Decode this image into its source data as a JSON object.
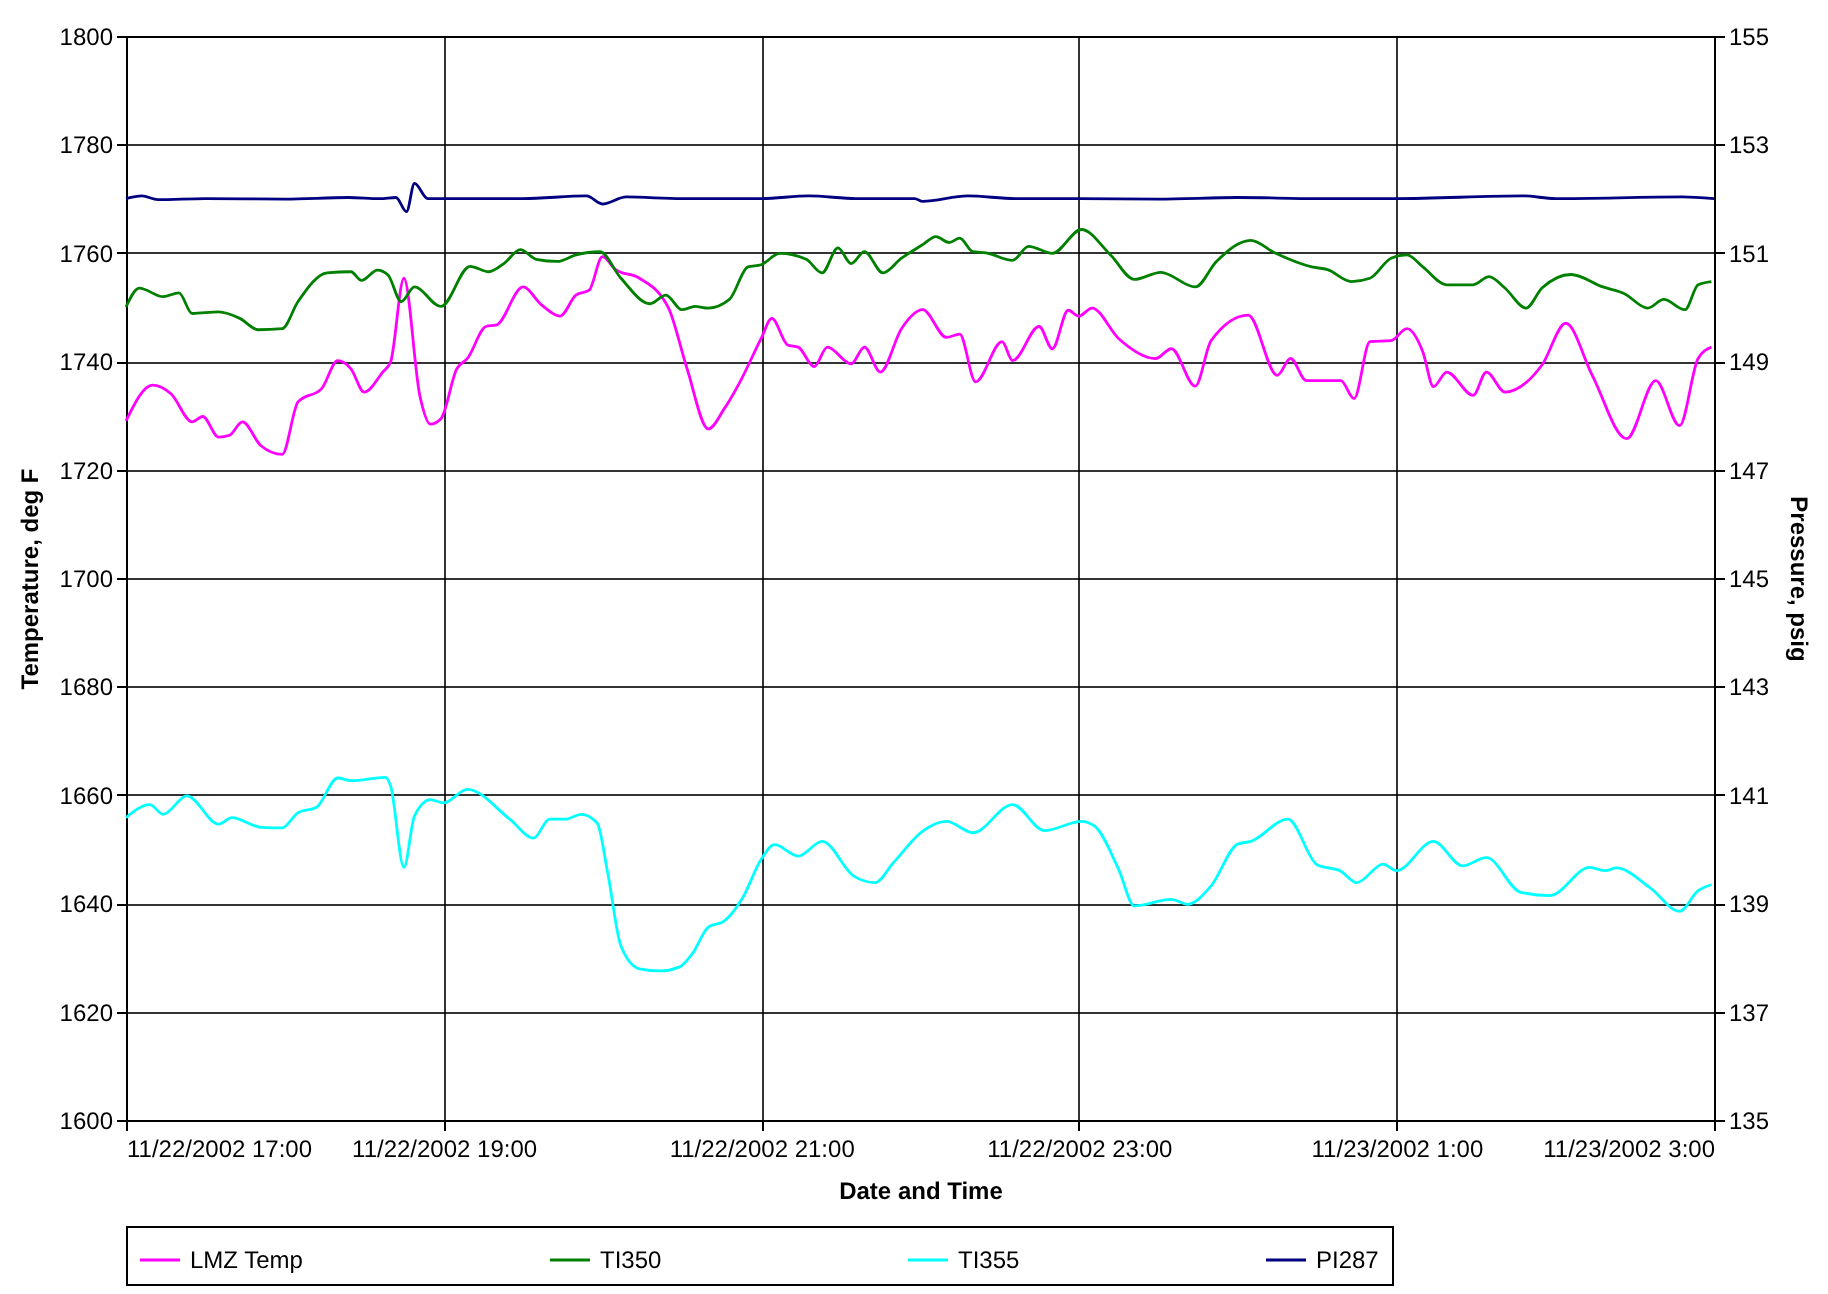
{
  "chart_data": {
    "type": "line",
    "xlabel": "Date and Time",
    "ylabel": "Temperature, deg F",
    "y2label": "Pressure, psig",
    "xlim": [
      "2002-11-22T17:00",
      "2002-11-23T03:00"
    ],
    "xticks": [
      {
        "value": "2002-11-22T17:00",
        "label": "11/22/2002 17:00"
      },
      {
        "value": "2002-11-22T19:00",
        "label": "11/22/2002 19:00"
      },
      {
        "value": "2002-11-22T21:00",
        "label": "11/22/2002 21:00"
      },
      {
        "value": "2002-11-22T23:00",
        "label": "11/22/2002 23:00"
      },
      {
        "value": "2002-11-23T01:00",
        "label": "11/23/2002 1:00"
      },
      {
        "value": "2002-11-23T03:00",
        "label": "11/23/2002 3:00"
      }
    ],
    "ylim": [
      1600,
      1800
    ],
    "yticks": [
      1600,
      1620,
      1640,
      1660,
      1680,
      1700,
      1720,
      1740,
      1760,
      1780,
      1800
    ],
    "y2lim": [
      135,
      155
    ],
    "y2ticks": [
      135,
      137,
      139,
      141,
      143,
      145,
      147,
      149,
      151,
      153,
      155
    ],
    "grid": true,
    "legend": "bottom",
    "series": [
      {
        "name": "LMZ Temp",
        "color": "#ff00ff",
        "x": [
          "2002-11-22T17:00",
          "2002-11-22T17:10",
          "2002-11-22T17:17",
          "2002-11-22T17:25",
          "2002-11-22T17:29",
          "2002-11-22T17:35",
          "2002-11-22T17:39",
          "2002-11-22T17:44",
          "2002-11-22T17:51",
          "2002-11-22T17:59",
          "2002-11-22T18:05",
          "2002-11-22T18:14",
          "2002-11-22T18:20",
          "2002-11-22T18:25",
          "2002-11-22T18:30",
          "2002-11-22T18:37",
          "2002-11-22T18:40",
          "2002-11-22T18:45",
          "2002-11-22T18:51",
          "2002-11-22T18:55",
          "2002-11-22T18:59",
          "2002-11-22T19:05",
          "2002-11-22T19:09",
          "2002-11-22T19:16",
          "2002-11-22T19:20",
          "2002-11-22T19:30",
          "2002-11-22T19:37",
          "2002-11-22T19:44",
          "2002-11-22T19:50",
          "2002-11-22T19:55",
          "2002-11-22T20:00",
          "2002-11-22T20:05",
          "2002-11-22T20:14",
          "2002-11-22T20:25",
          "2002-11-22T20:32",
          "2002-11-22T20:40",
          "2002-11-22T20:46",
          "2002-11-22T20:52",
          "2002-11-22T21:00",
          "2002-11-22T21:04",
          "2002-11-22T21:10",
          "2002-11-22T21:14",
          "2002-11-22T21:20",
          "2002-11-22T21:25",
          "2002-11-22T21:34",
          "2002-11-22T21:39",
          "2002-11-22T21:45",
          "2002-11-22T21:53",
          "2002-11-22T22:01",
          "2002-11-22T22:10",
          "2002-11-22T22:15",
          "2002-11-22T22:21",
          "2002-11-22T22:31",
          "2002-11-22T22:35",
          "2002-11-22T22:45",
          "2002-11-22T22:50",
          "2002-11-22T22:56",
          "2002-11-22T23:00",
          "2002-11-22T23:05",
          "2002-11-22T23:15",
          "2002-11-22T23:29",
          "2002-11-22T23:35",
          "2002-11-22T23:44",
          "2002-11-22T23:50",
          "2002-11-23T00:04",
          "2002-11-23T00:15",
          "2002-11-23T00:20",
          "2002-11-23T00:26",
          "2002-11-23T00:39",
          "2002-11-23T00:44",
          "2002-11-23T00:50",
          "2002-11-23T00:58",
          "2002-11-23T01:04",
          "2002-11-23T01:10",
          "2002-11-23T01:14",
          "2002-11-23T01:19",
          "2002-11-23T01:29",
          "2002-11-23T01:34",
          "2002-11-23T01:41",
          "2002-11-23T01:55",
          "2002-11-23T02:04",
          "2002-11-23T02:14",
          "2002-11-23T02:27",
          "2002-11-23T02:38",
          "2002-11-23T02:47",
          "2002-11-23T02:54",
          "2002-11-23T02:59"
        ],
        "values": [
          1729,
          1735.6,
          1734,
          1728.8,
          1729.8,
          1726,
          1726.3,
          1728.8,
          1724.4,
          1722.8,
          1732.5,
          1735,
          1740.1,
          1738.6,
          1734.3,
          1738,
          1739.9,
          1755.3,
          1733.7,
          1728.4,
          1729.4,
          1738.6,
          1740.5,
          1746.4,
          1746.7,
          1753.7,
          1750.4,
          1748.3,
          1752.2,
          1753.1,
          1759.3,
          1756.9,
          1755.3,
          1749.8,
          1738.6,
          1727.5,
          1731.2,
          1736.2,
          1744.2,
          1747.9,
          1743,
          1742.6,
          1739,
          1742.6,
          1739.5,
          1742.6,
          1738,
          1746,
          1749.5,
          1744.4,
          1745,
          1736.2,
          1743.6,
          1740.1,
          1746.4,
          1742.3,
          1749.4,
          1748.3,
          1749.8,
          1744.2,
          1740.5,
          1742.3,
          1735.4,
          1743.8,
          1748.5,
          1737.4,
          1740.5,
          1736.4,
          1736.4,
          1733.1,
          1743.6,
          1743.8,
          1746,
          1741.7,
          1735.3,
          1738,
          1733.7,
          1738,
          1734.3,
          1739.3,
          1747,
          1737.4,
          1725.7,
          1736.4,
          1728.1,
          1740.5,
          1742.6
        ]
      },
      {
        "name": "TI350",
        "color": "#008000",
        "x": [
          "2002-11-22T17:00",
          "2002-11-22T17:05",
          "2002-11-22T17:14",
          "2002-11-22T17:20",
          "2002-11-22T17:25",
          "2002-11-22T17:35",
          "2002-11-22T17:43",
          "2002-11-22T17:50",
          "2002-11-22T17:59",
          "2002-11-22T18:05",
          "2002-11-22T18:16",
          "2002-11-22T18:25",
          "2002-11-22T18:29",
          "2002-11-22T18:35",
          "2002-11-22T18:39",
          "2002-11-22T18:44",
          "2002-11-22T18:49",
          "2002-11-22T18:59",
          "2002-11-22T19:10",
          "2002-11-22T19:17",
          "2002-11-22T19:23",
          "2002-11-22T19:29",
          "2002-11-22T19:35",
          "2002-11-22T19:43",
          "2002-11-22T19:50",
          "2002-11-22T19:59",
          "2002-11-22T20:07",
          "2002-11-22T20:18",
          "2002-11-22T20:24",
          "2002-11-22T20:30",
          "2002-11-22T20:35",
          "2002-11-22T20:40",
          "2002-11-22T20:48",
          "2002-11-22T20:55",
          "2002-11-22T21:00",
          "2002-11-22T21:07",
          "2002-11-22T21:17",
          "2002-11-22T21:23",
          "2002-11-22T21:29",
          "2002-11-22T21:34",
          "2002-11-22T21:39",
          "2002-11-22T21:46",
          "2002-11-22T21:53",
          "2002-11-22T22:01",
          "2002-11-22T22:06",
          "2002-11-22T22:11",
          "2002-11-22T22:15",
          "2002-11-22T22:20",
          "2002-11-22T22:25",
          "2002-11-22T22:35",
          "2002-11-22T22:41",
          "2002-11-22T22:50",
          "2002-11-22T23:01",
          "2002-11-22T23:12",
          "2002-11-22T23:21",
          "2002-11-22T23:31",
          "2002-11-22T23:44",
          "2002-11-22T23:52",
          "2002-11-23T00:05",
          "2002-11-23T00:14",
          "2002-11-23T00:28",
          "2002-11-23T00:34",
          "2002-11-23T00:43",
          "2002-11-23T00:50",
          "2002-11-23T00:58",
          "2002-11-23T01:04",
          "2002-11-23T01:10",
          "2002-11-23T01:19",
          "2002-11-23T01:29",
          "2002-11-23T01:35",
          "2002-11-23T01:41",
          "2002-11-23T01:49",
          "2002-11-23T01:55",
          "2002-11-23T02:06",
          "2002-11-23T02:18",
          "2002-11-23T02:26",
          "2002-11-23T02:35",
          "2002-11-23T02:41",
          "2002-11-23T02:49",
          "2002-11-23T02:54",
          "2002-11-23T02:59"
        ],
        "values": [
          1750,
          1753.5,
          1751.9,
          1752.6,
          1748.8,
          1749.1,
          1747.9,
          1745.8,
          1746,
          1751,
          1756.3,
          1756.5,
          1754.9,
          1756.8,
          1755.9,
          1751,
          1753.7,
          1750.1,
          1757.5,
          1756.5,
          1758.1,
          1760.6,
          1758.8,
          1758.4,
          1759.6,
          1760.2,
          1755.3,
          1750.6,
          1752.2,
          1749.5,
          1750.1,
          1749.8,
          1751.4,
          1757.4,
          1757.8,
          1759.9,
          1758.8,
          1756.3,
          1760.9,
          1758,
          1760.2,
          1756.3,
          1759,
          1761.5,
          1763,
          1761.9,
          1762.7,
          1760.2,
          1760,
          1758.6,
          1761.2,
          1759.9,
          1764.3,
          1759.6,
          1755.1,
          1756.4,
          1753.7,
          1758.4,
          1762.3,
          1760,
          1757.4,
          1756.9,
          1754.7,
          1755.3,
          1759,
          1759.6,
          1757.4,
          1754.1,
          1754.1,
          1755.6,
          1753.5,
          1749.8,
          1753.5,
          1756,
          1753.7,
          1752.5,
          1749.8,
          1751.4,
          1749.5,
          1754.1,
          1754.7
        ]
      },
      {
        "name": "TI355",
        "color": "#00ffff",
        "x": [
          "2002-11-22T17:00",
          "2002-11-22T17:09",
          "2002-11-22T17:14",
          "2002-11-22T17:23",
          "2002-11-22T17:35",
          "2002-11-22T17:40",
          "2002-11-22T17:51",
          "2002-11-22T17:59",
          "2002-11-22T18:05",
          "2002-11-22T18:12",
          "2002-11-22T18:20",
          "2002-11-22T18:25",
          "2002-11-22T18:38",
          "2002-11-22T18:40",
          "2002-11-22T18:45",
          "2002-11-22T18:49",
          "2002-11-22T18:55",
          "2002-11-22T19:00",
          "2002-11-22T19:09",
          "2002-11-22T19:25",
          "2002-11-22T19:34",
          "2002-11-22T19:40",
          "2002-11-22T19:46",
          "2002-11-22T19:52",
          "2002-11-22T19:58",
          "2002-11-22T20:02",
          "2002-11-22T20:07",
          "2002-11-22T20:14",
          "2002-11-22T20:22",
          "2002-11-22T20:29",
          "2002-11-22T20:34",
          "2002-11-22T20:40",
          "2002-11-22T20:46",
          "2002-11-22T20:53",
          "2002-11-22T21:00",
          "2002-11-22T21:05",
          "2002-11-22T21:14",
          "2002-11-22T21:23",
          "2002-11-22T21:35",
          "2002-11-22T21:43",
          "2002-11-22T21:50",
          "2002-11-22T22:01",
          "2002-11-22T22:10",
          "2002-11-22T22:20",
          "2002-11-22T22:35",
          "2002-11-22T22:47",
          "2002-11-22T23:01",
          "2002-11-22T23:06",
          "2002-11-22T23:15",
          "2002-11-22T23:21",
          "2002-11-22T23:35",
          "2002-11-22T23:41",
          "2002-11-22T23:50",
          "2002-11-23T00:00",
          "2002-11-23T00:05",
          "2002-11-23T00:19",
          "2002-11-23T00:30",
          "2002-11-23T00:39",
          "2002-11-23T00:45",
          "2002-11-23T00:55",
          "2002-11-23T01:00",
          "2002-11-23T01:14",
          "2002-11-23T01:25",
          "2002-11-23T01:34",
          "2002-11-23T01:47",
          "2002-11-23T01:58",
          "2002-11-23T02:13",
          "2002-11-23T02:19",
          "2002-11-23T02:23",
          "2002-11-23T02:36",
          "2002-11-23T02:47",
          "2002-11-23T02:54",
          "2002-11-23T02:59"
        ],
        "values": [
          1655.8,
          1658.2,
          1656.4,
          1659.8,
          1654.6,
          1655.8,
          1654,
          1653.9,
          1656.7,
          1657.7,
          1663.1,
          1662.6,
          1663.2,
          1661.6,
          1646.6,
          1656.1,
          1659.1,
          1658.5,
          1661,
          1655.5,
          1652,
          1655.5,
          1655.5,
          1656.4,
          1654.8,
          1645.6,
          1632.1,
          1627.9,
          1627.5,
          1628.2,
          1630.7,
          1635.6,
          1636.7,
          1641,
          1648.1,
          1650.8,
          1648.7,
          1651.4,
          1645,
          1643.8,
          1647.5,
          1653.3,
          1655.1,
          1653,
          1658.2,
          1653.4,
          1655.1,
          1654.2,
          1646.3,
          1639.5,
          1640.7,
          1639.8,
          1643.2,
          1650.9,
          1651.4,
          1655.5,
          1647.1,
          1645.9,
          1643.8,
          1647.2,
          1646,
          1651.4,
          1646.9,
          1648.4,
          1642,
          1641.4,
          1646.6,
          1646,
          1646.5,
          1642.8,
          1638.5,
          1642.3,
          1643.4
        ]
      },
      {
        "name": "PI287",
        "color": "#000080",
        "axis": "y2",
        "x": [
          "2002-11-22T17:00",
          "2002-11-22T17:06",
          "2002-11-22T17:12",
          "2002-11-22T17:30",
          "2002-11-22T18:00",
          "2002-11-22T18:24",
          "2002-11-22T18:36",
          "2002-11-22T18:42",
          "2002-11-22T18:46",
          "2002-11-22T18:49",
          "2002-11-22T18:54",
          "2002-11-22T19:30",
          "2002-11-22T19:54",
          "2002-11-22T20:00",
          "2002-11-22T20:09",
          "2002-11-22T20:30",
          "2002-11-22T21:00",
          "2002-11-22T21:18",
          "2002-11-22T21:36",
          "2002-11-22T21:58",
          "2002-11-22T22:01",
          "2002-11-22T22:18",
          "2002-11-22T22:36",
          "2002-11-22T23:00",
          "2002-11-22T23:30",
          "2002-11-23T00:00",
          "2002-11-23T00:30",
          "2002-11-23T01:00",
          "2002-11-23T01:48",
          "2002-11-23T02:00",
          "2002-11-23T02:48",
          "2002-11-23T03:00"
        ],
        "values": [
          152.0,
          152.05,
          151.98,
          152.0,
          151.99,
          152.02,
          152.0,
          152.02,
          151.76,
          152.28,
          152.0,
          152.0,
          152.05,
          151.9,
          152.03,
          152.0,
          152.0,
          152.05,
          152.0,
          152.0,
          151.95,
          152.05,
          152.0,
          152.0,
          151.99,
          152.02,
          152.0,
          152.0,
          152.05,
          152.0,
          152.03,
          152.0
        ]
      }
    ]
  }
}
